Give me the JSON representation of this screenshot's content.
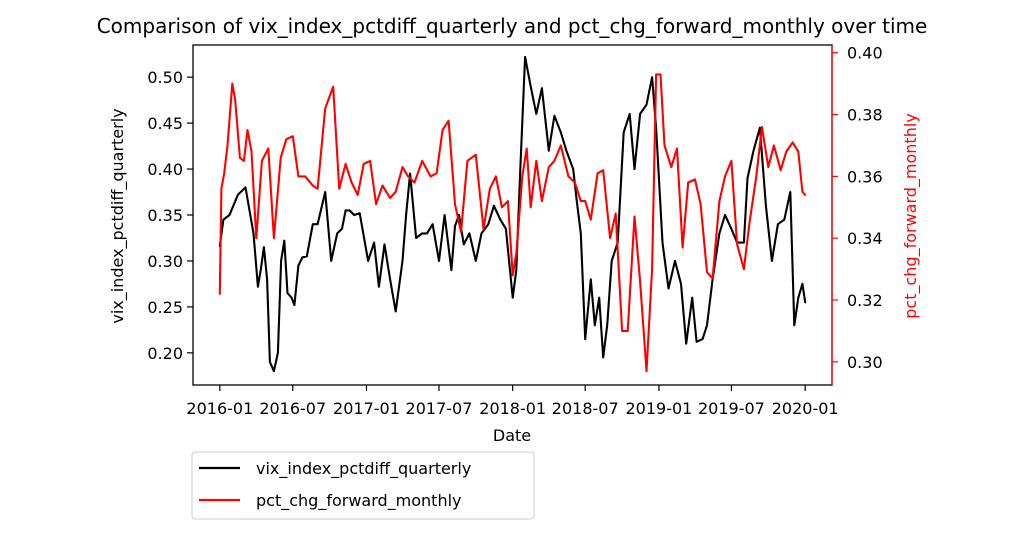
{
  "chart_data": {
    "type": "line",
    "title": "Comparison of vix_index_pctdiff_quarterly and pct_chg_forward_monthly over time",
    "xlabel": "Date",
    "ylabel_left": "vix_index_pctdiff_quarterly",
    "ylabel_right": "pct_chg_forward_monthly",
    "xlim": [
      "2015-10-26",
      "2020-03-08"
    ],
    "ylim_left": [
      0.165,
      0.535
    ],
    "ylim_right": [
      0.2925,
      0.4025
    ],
    "x_ticks": [
      "2016-01",
      "2016-07",
      "2017-01",
      "2017-07",
      "2018-01",
      "2018-07",
      "2019-01",
      "2019-07",
      "2020-01"
    ],
    "y_ticks_left": [
      "0.20",
      "0.25",
      "0.30",
      "0.35",
      "0.40",
      "0.45",
      "0.50"
    ],
    "y_ticks_right": [
      "0.30",
      "0.32",
      "0.34",
      "0.36",
      "0.38",
      "0.40"
    ],
    "grid": false,
    "legend_placement": "below-left",
    "series": [
      {
        "name": "vix_index_pctdiff_quarterly",
        "axis": "left",
        "color": "#000000",
        "x": [
          "2016-01-01",
          "2016-01-10",
          "2016-01-25",
          "2016-02-15",
          "2016-03-05",
          "2016-03-25",
          "2016-04-05",
          "2016-04-12",
          "2016-04-20",
          "2016-04-28",
          "2016-05-05",
          "2016-05-15",
          "2016-05-25",
          "2016-06-02",
          "2016-06-10",
          "2016-06-18",
          "2016-06-28",
          "2016-07-05",
          "2016-07-15",
          "2016-07-25",
          "2016-08-05",
          "2016-08-20",
          "2016-09-01",
          "2016-09-20",
          "2016-10-05",
          "2016-10-20",
          "2016-11-01",
          "2016-11-10",
          "2016-11-20",
          "2016-12-01",
          "2016-12-15",
          "2017-01-05",
          "2017-01-20",
          "2017-02-01",
          "2017-02-15",
          "2017-03-01",
          "2017-03-15",
          "2017-04-01",
          "2017-04-10",
          "2017-04-20",
          "2017-05-05",
          "2017-05-20",
          "2017-06-01",
          "2017-06-15",
          "2017-07-01",
          "2017-07-15",
          "2017-08-01",
          "2017-08-10",
          "2017-08-20",
          "2017-09-01",
          "2017-09-15",
          "2017-10-01",
          "2017-10-15",
          "2017-11-01",
          "2017-11-15",
          "2017-12-01",
          "2017-12-15",
          "2018-01-01",
          "2018-01-10",
          "2018-01-20",
          "2018-02-01",
          "2018-02-15",
          "2018-03-01",
          "2018-03-15",
          "2018-04-01",
          "2018-04-15",
          "2018-05-01",
          "2018-05-15",
          "2018-06-01",
          "2018-06-10",
          "2018-06-20",
          "2018-07-01",
          "2018-07-15",
          "2018-07-25",
          "2018-08-05",
          "2018-08-15",
          "2018-08-25",
          "2018-09-05",
          "2018-09-20",
          "2018-10-05",
          "2018-10-20",
          "2018-11-01",
          "2018-11-15",
          "2018-12-01",
          "2018-12-15",
          "2018-12-25",
          "2019-01-10",
          "2019-01-25",
          "2019-02-10",
          "2019-02-25",
          "2019-03-10",
          "2019-03-25",
          "2019-04-05",
          "2019-04-20",
          "2019-05-01",
          "2019-05-15",
          "2019-06-01",
          "2019-06-15",
          "2019-07-01",
          "2019-07-15",
          "2019-08-01",
          "2019-08-10",
          "2019-08-25",
          "2019-09-10",
          "2019-09-25",
          "2019-10-10",
          "2019-10-25",
          "2019-11-10",
          "2019-11-25",
          "2019-12-05",
          "2019-12-15",
          "2019-12-25",
          "2020-01-01"
        ],
        "values": [
          0.316,
          0.345,
          0.35,
          0.372,
          0.38,
          0.33,
          0.272,
          0.29,
          0.315,
          0.28,
          0.19,
          0.18,
          0.2,
          0.3,
          0.322,
          0.265,
          0.26,
          0.252,
          0.295,
          0.304,
          0.305,
          0.34,
          0.34,
          0.375,
          0.3,
          0.33,
          0.335,
          0.355,
          0.355,
          0.35,
          0.352,
          0.3,
          0.32,
          0.272,
          0.318,
          0.28,
          0.245,
          0.3,
          0.35,
          0.395,
          0.325,
          0.33,
          0.33,
          0.34,
          0.3,
          0.35,
          0.29,
          0.338,
          0.35,
          0.318,
          0.33,
          0.3,
          0.33,
          0.34,
          0.36,
          0.345,
          0.335,
          0.26,
          0.29,
          0.4,
          0.522,
          0.49,
          0.46,
          0.488,
          0.42,
          0.458,
          0.44,
          0.42,
          0.4,
          0.365,
          0.33,
          0.215,
          0.28,
          0.23,
          0.26,
          0.195,
          0.23,
          0.3,
          0.32,
          0.44,
          0.46,
          0.4,
          0.46,
          0.47,
          0.5,
          0.445,
          0.32,
          0.27,
          0.3,
          0.275,
          0.21,
          0.26,
          0.212,
          0.215,
          0.23,
          0.28,
          0.33,
          0.35,
          0.335,
          0.32,
          0.32,
          0.39,
          0.42,
          0.445,
          0.36,
          0.3,
          0.34,
          0.345,
          0.375,
          0.23,
          0.26,
          0.275,
          0.255
        ]
      },
      {
        "name": "pct_chg_forward_monthly",
        "axis": "right",
        "color": "#ff0000",
        "x": [
          "2016-01-01",
          "2016-01-05",
          "2016-01-12",
          "2016-01-20",
          "2016-02-01",
          "2016-02-08",
          "2016-02-20",
          "2016-03-01",
          "2016-03-10",
          "2016-03-20",
          "2016-04-01",
          "2016-04-15",
          "2016-05-01",
          "2016-05-15",
          "2016-06-01",
          "2016-06-15",
          "2016-07-01",
          "2016-07-15",
          "2016-08-01",
          "2016-08-20",
          "2016-09-01",
          "2016-09-20",
          "2016-10-10",
          "2016-10-25",
          "2016-11-10",
          "2016-11-25",
          "2016-12-10",
          "2016-12-25",
          "2017-01-10",
          "2017-01-25",
          "2017-02-10",
          "2017-03-01",
          "2017-03-15",
          "2017-04-01",
          "2017-04-15",
          "2017-05-01",
          "2017-05-20",
          "2017-06-10",
          "2017-06-25",
          "2017-07-10",
          "2017-07-25",
          "2017-08-10",
          "2017-08-25",
          "2017-09-10",
          "2017-10-01",
          "2017-10-20",
          "2017-11-05",
          "2017-11-20",
          "2017-12-05",
          "2017-12-20",
          "2018-01-01",
          "2018-01-10",
          "2018-01-25",
          "2018-02-05",
          "2018-02-15",
          "2018-03-01",
          "2018-03-15",
          "2018-04-01",
          "2018-04-15",
          "2018-05-01",
          "2018-05-20",
          "2018-06-05",
          "2018-06-20",
          "2018-07-01",
          "2018-07-15",
          "2018-08-01",
          "2018-08-15",
          "2018-09-01",
          "2018-09-15",
          "2018-10-01",
          "2018-10-15",
          "2018-11-01",
          "2018-11-15",
          "2018-12-01",
          "2018-12-15",
          "2018-12-25",
          "2019-01-05",
          "2019-01-15",
          "2019-02-01",
          "2019-02-15",
          "2019-03-01",
          "2019-03-15",
          "2019-04-01",
          "2019-04-15",
          "2019-05-01",
          "2019-05-15",
          "2019-06-01",
          "2019-06-15",
          "2019-07-01",
          "2019-07-15",
          "2019-08-01",
          "2019-08-15",
          "2019-09-01",
          "2019-09-15",
          "2019-10-01",
          "2019-10-15",
          "2019-11-01",
          "2019-11-15",
          "2019-12-01",
          "2019-12-15",
          "2019-12-25",
          "2020-01-01"
        ],
        "values": [
          0.322,
          0.356,
          0.361,
          0.37,
          0.39,
          0.385,
          0.366,
          0.365,
          0.375,
          0.368,
          0.34,
          0.365,
          0.369,
          0.34,
          0.366,
          0.372,
          0.373,
          0.36,
          0.36,
          0.357,
          0.356,
          0.382,
          0.389,
          0.356,
          0.364,
          0.358,
          0.354,
          0.364,
          0.365,
          0.351,
          0.357,
          0.353,
          0.355,
          0.363,
          0.36,
          0.358,
          0.365,
          0.36,
          0.361,
          0.375,
          0.378,
          0.351,
          0.342,
          0.365,
          0.367,
          0.343,
          0.356,
          0.36,
          0.35,
          0.352,
          0.328,
          0.335,
          0.36,
          0.369,
          0.35,
          0.365,
          0.352,
          0.363,
          0.365,
          0.37,
          0.36,
          0.358,
          0.352,
          0.352,
          0.346,
          0.361,
          0.362,
          0.34,
          0.348,
          0.31,
          0.31,
          0.347,
          0.326,
          0.297,
          0.33,
          0.393,
          0.393,
          0.37,
          0.363,
          0.369,
          0.337,
          0.358,
          0.359,
          0.351,
          0.329,
          0.327,
          0.352,
          0.36,
          0.365,
          0.338,
          0.33,
          0.345,
          0.36,
          0.376,
          0.363,
          0.37,
          0.362,
          0.368,
          0.371,
          0.368,
          0.355,
          0.354
        ]
      }
    ]
  }
}
